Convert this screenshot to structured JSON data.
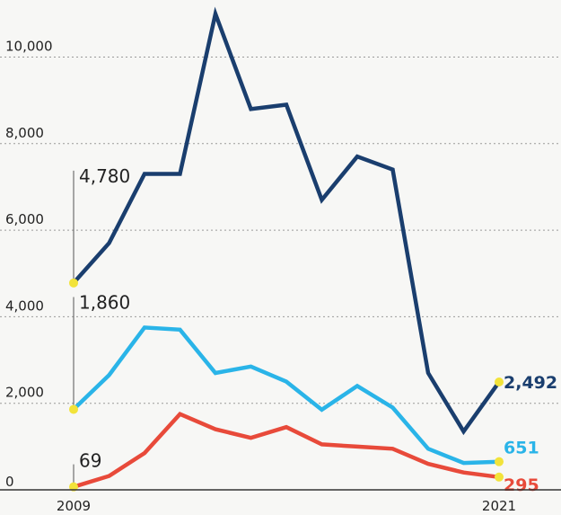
{
  "chart_data": {
    "type": "line",
    "title": "",
    "xlabel": "",
    "ylabel": "",
    "x": [
      2009,
      2010,
      2011,
      2012,
      2013,
      2014,
      2015,
      2016,
      2017,
      2018,
      2019,
      2020,
      2021
    ],
    "x_tick_labels": [
      "2009",
      "2021"
    ],
    "y_tick_labels": [
      "0",
      "2,000",
      "4,000",
      "6,000",
      "8,000",
      "10,000"
    ],
    "ylim": [
      0,
      11000
    ],
    "grid": true,
    "series": [
      {
        "color": "#1a3e6e",
        "values": [
          4780,
          5700,
          7300,
          7300,
          11000,
          8800,
          8900,
          6700,
          7700,
          7400,
          2700,
          1350,
          2492
        ],
        "start_label": "4,780",
        "end_label": "2,492"
      },
      {
        "color": "#2ab4e8",
        "values": [
          1860,
          2650,
          3750,
          3700,
          2700,
          2850,
          2500,
          1850,
          2400,
          1900,
          950,
          620,
          651
        ],
        "start_label": "1,860",
        "end_label": "651"
      },
      {
        "color": "#e84a3a",
        "values": [
          69,
          320,
          850,
          1750,
          1400,
          1200,
          1450,
          1050,
          1000,
          950,
          600,
          400,
          295
        ],
        "start_label": "69",
        "end_label": "295"
      }
    ]
  }
}
